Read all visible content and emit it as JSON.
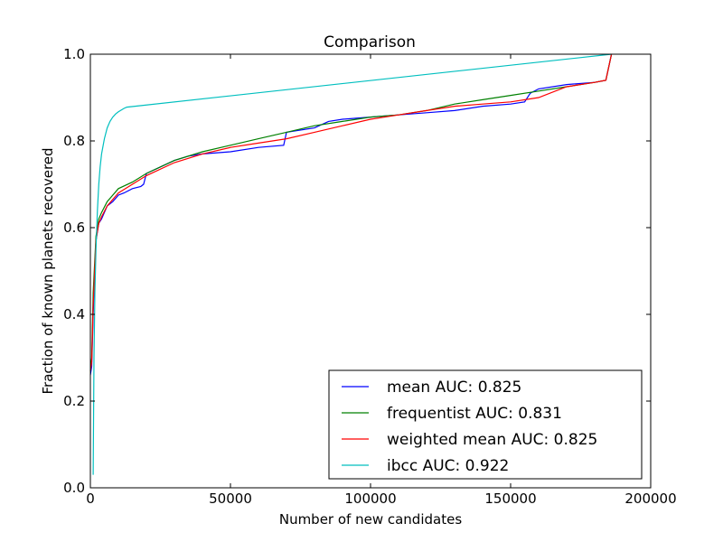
{
  "chart_data": {
    "type": "line",
    "title": "Comparison",
    "xlabel": "Number of new candidates",
    "ylabel": "Fraction of known planets recovered",
    "xlim": [
      0,
      200000
    ],
    "ylim": [
      0.0,
      1.0
    ],
    "xticks": [
      0,
      50000,
      100000,
      150000,
      200000
    ],
    "xtick_labels": [
      "0",
      "50000",
      "100000",
      "150000",
      "200000"
    ],
    "yticks": [
      0.0,
      0.2,
      0.4,
      0.6,
      0.8,
      1.0
    ],
    "ytick_labels": [
      "0.0",
      "0.2",
      "0.4",
      "0.6",
      "0.8",
      "1.0"
    ],
    "grid": false,
    "legend_position": "bottom-right",
    "series": [
      {
        "name": "mean AUC: 0.825",
        "color": "#0000ff",
        "x": [
          0,
          500,
          1000,
          2000,
          3000,
          4000,
          6000,
          8000,
          10000,
          12000,
          15000,
          18000,
          19000,
          20000,
          25000,
          30000,
          35000,
          40000,
          50000,
          60000,
          69000,
          70000,
          80000,
          85000,
          90000,
          100000,
          110000,
          120000,
          130000,
          140000,
          150000,
          155000,
          157000,
          160000,
          170000,
          180000,
          184000,
          186000
        ],
        "y": [
          0.26,
          0.28,
          0.4,
          0.57,
          0.61,
          0.62,
          0.65,
          0.66,
          0.675,
          0.68,
          0.69,
          0.695,
          0.7,
          0.725,
          0.74,
          0.755,
          0.765,
          0.77,
          0.775,
          0.785,
          0.79,
          0.82,
          0.83,
          0.845,
          0.85,
          0.855,
          0.86,
          0.865,
          0.87,
          0.88,
          0.885,
          0.89,
          0.91,
          0.92,
          0.93,
          0.935,
          0.94,
          1.0
        ]
      },
      {
        "name": "frequentist AUC: 0.831",
        "color": "#008000",
        "x": [
          0,
          500,
          1000,
          2000,
          3000,
          4000,
          6000,
          8000,
          10000,
          15000,
          20000,
          30000,
          40000,
          50000,
          60000,
          70000,
          80000,
          90000,
          100000,
          110000,
          120000,
          130000,
          140000,
          150000,
          160000,
          170000,
          180000,
          184000,
          186000
        ],
        "y": [
          0.27,
          0.3,
          0.45,
          0.58,
          0.62,
          0.635,
          0.66,
          0.675,
          0.69,
          0.705,
          0.725,
          0.755,
          0.775,
          0.79,
          0.805,
          0.82,
          0.835,
          0.845,
          0.855,
          0.86,
          0.87,
          0.885,
          0.895,
          0.905,
          0.915,
          0.925,
          0.935,
          0.94,
          1.0
        ]
      },
      {
        "name": "weighted mean AUC: 0.825",
        "color": "#ff0000",
        "x": [
          0,
          500,
          1000,
          2000,
          3000,
          4000,
          6000,
          8000,
          10000,
          15000,
          20000,
          30000,
          40000,
          50000,
          60000,
          70000,
          80000,
          90000,
          100000,
          110000,
          120000,
          130000,
          140000,
          150000,
          160000,
          170000,
          180000,
          184000,
          186000
        ],
        "y": [
          0.27,
          0.29,
          0.42,
          0.57,
          0.61,
          0.625,
          0.65,
          0.665,
          0.68,
          0.7,
          0.72,
          0.75,
          0.77,
          0.785,
          0.795,
          0.805,
          0.82,
          0.835,
          0.85,
          0.86,
          0.87,
          0.88,
          0.885,
          0.89,
          0.9,
          0.925,
          0.935,
          0.94,
          1.0
        ]
      },
      {
        "name": "ibcc AUC: 0.922",
        "color": "#00bfbf",
        "x": [
          1000,
          1300,
          1600,
          2000,
          2500,
          3000,
          3500,
          4000,
          5000,
          6000,
          7000,
          8000,
          9000,
          10000,
          11000,
          12000,
          13000,
          186000
        ],
        "y": [
          0.03,
          0.3,
          0.45,
          0.55,
          0.64,
          0.7,
          0.74,
          0.77,
          0.805,
          0.83,
          0.845,
          0.855,
          0.862,
          0.867,
          0.871,
          0.875,
          0.878,
          1.0
        ]
      }
    ]
  }
}
